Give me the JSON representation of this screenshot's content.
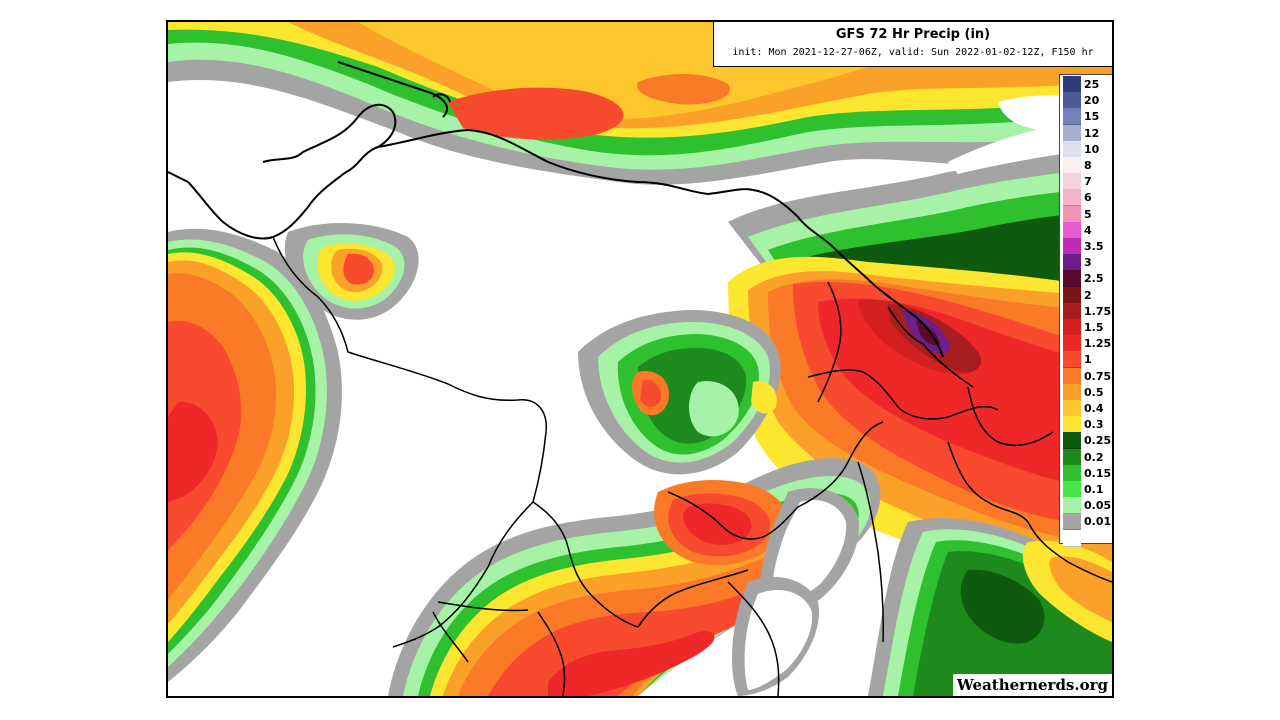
{
  "map": {
    "title": "GFS 72 Hr Precip (in)",
    "subtitle": "init: Mon 2021-12-27-06Z, valid: Sun 2022-01-02-12Z, F150 hr",
    "watermark": "Weathernerds.org",
    "unit": "in",
    "legend": [
      {
        "label": "25",
        "color": "#2e3a7a"
      },
      {
        "label": "20",
        "color": "#4b5a9a"
      },
      {
        "label": "15",
        "color": "#7480b8"
      },
      {
        "label": "12",
        "color": "#a8aed2"
      },
      {
        "label": "10",
        "color": "#dcdfee"
      },
      {
        "label": "8",
        "color": "#fbeff2"
      },
      {
        "label": "7",
        "color": "#f6d2dc"
      },
      {
        "label": "6",
        "color": "#f2b4c6"
      },
      {
        "label": "5",
        "color": "#f093b4"
      },
      {
        "label": "4",
        "color": "#e85ad0"
      },
      {
        "label": "3.5",
        "color": "#c02ab8"
      },
      {
        "label": "3",
        "color": "#6e1e88"
      },
      {
        "label": "2.5",
        "color": "#5a0a2a"
      },
      {
        "label": "2",
        "color": "#7c1414"
      },
      {
        "label": "1.75",
        "color": "#a81e1e"
      },
      {
        "label": "1.5",
        "color": "#d42020"
      },
      {
        "label": "1.25",
        "color": "#ee2828"
      },
      {
        "label": "1",
        "color": "#f84a2e"
      },
      {
        "label": "0.75",
        "color": "#fa7a28"
      },
      {
        "label": "0.5",
        "color": "#fba028"
      },
      {
        "label": "0.4",
        "color": "#fcc62c"
      },
      {
        "label": "0.3",
        "color": "#fde630"
      },
      {
        "label": "0.25",
        "color": "#0e5a0e"
      },
      {
        "label": "0.2",
        "color": "#1e8a1e"
      },
      {
        "label": "0.15",
        "color": "#2ec02e"
      },
      {
        "label": "0.1",
        "color": "#46e646"
      },
      {
        "label": "0.05",
        "color": "#a6f2a6"
      },
      {
        "label": "0.01",
        "color": "#a4a4a4"
      },
      {
        "label": "",
        "color": "#ffffff"
      }
    ]
  }
}
